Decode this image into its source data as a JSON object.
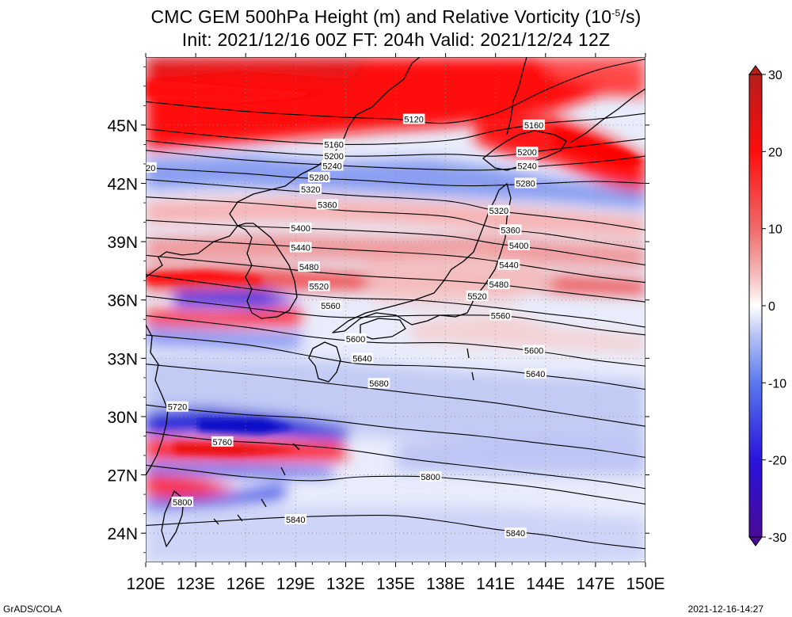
{
  "title": {
    "line1_prefix": "CMC GEM 500hPa Height (m) and Relative Vorticity (10",
    "line1_sup": "-5",
    "line1_suffix": "/s)",
    "line2": "Init: 2021/12/16 00Z  FT: 204h  Valid: 2021/12/24 12Z"
  },
  "map": {
    "lon_range": [
      120,
      150
    ],
    "lat_range": [
      22.5,
      48.5
    ],
    "lon_ticks": [
      120,
      123,
      126,
      129,
      132,
      135,
      138,
      141,
      144,
      147,
      150
    ],
    "lat_ticks": [
      24,
      27,
      30,
      33,
      36,
      39,
      42,
      45
    ],
    "lon_labels": [
      "120E",
      "123E",
      "126E",
      "129E",
      "132E",
      "135E",
      "138E",
      "141E",
      "144E",
      "147E",
      "150E"
    ],
    "lat_labels": [
      "24N",
      "27N",
      "30N",
      "33N",
      "36N",
      "39N",
      "42N",
      "45N"
    ]
  },
  "contours": [
    {
      "value": 5120,
      "label": "5120",
      "pts": [
        [
          120,
          46.2
        ],
        [
          126,
          45.7
        ],
        [
          132,
          45.4
        ],
        [
          135,
          45.3
        ],
        [
          138,
          45.1
        ],
        [
          141,
          45.6
        ],
        [
          144,
          46.8
        ],
        [
          147,
          47.8
        ],
        [
          150,
          48.4
        ]
      ]
    },
    {
      "value": 5160,
      "label": "5160",
      "pts": [
        [
          120,
          44.8
        ],
        [
          126,
          44.3
        ],
        [
          132,
          44.0
        ],
        [
          138,
          44.2
        ],
        [
          141,
          44.7
        ],
        [
          144,
          45.1
        ],
        [
          147,
          45.3
        ],
        [
          150,
          45.6
        ]
      ]
    },
    {
      "value": 5200,
      "label": "5200",
      "pts": [
        [
          120,
          44.2
        ],
        [
          126,
          43.7
        ],
        [
          132,
          43.4
        ],
        [
          138,
          43.5
        ],
        [
          141,
          43.4
        ],
        [
          144,
          43.7
        ],
        [
          147,
          44.0
        ],
        [
          150,
          44.3
        ]
      ]
    },
    {
      "value": 5240,
      "label": "5240",
      "pts": [
        [
          120,
          43.7
        ],
        [
          126,
          43.2
        ],
        [
          132,
          42.9
        ],
        [
          138,
          42.7
        ],
        [
          141,
          42.7
        ],
        [
          144,
          42.9
        ],
        [
          147,
          43.1
        ],
        [
          150,
          43.4
        ]
      ]
    },
    {
      "value": 5280,
      "label": "5280",
      "pts": [
        [
          120,
          42.8
        ],
        [
          126,
          42.5
        ],
        [
          129,
          42.3
        ],
        [
          132,
          42.2
        ],
        [
          138,
          41.9
        ],
        [
          141,
          41.9
        ],
        [
          144,
          42.0
        ],
        [
          147,
          42.1
        ],
        [
          150,
          42.0
        ]
      ]
    },
    {
      "value": 5320,
      "label": "5320",
      "pts": [
        [
          120,
          42.2
        ],
        [
          126,
          41.8
        ],
        [
          132,
          41.4
        ],
        [
          138,
          41.1
        ],
        [
          141,
          40.6
        ],
        [
          144,
          40.3
        ],
        [
          147,
          40.0
        ],
        [
          150,
          39.6
        ]
      ]
    },
    {
      "value": 5360,
      "label": "5360",
      "pts": [
        [
          120,
          41.3
        ],
        [
          126,
          41.0
        ],
        [
          132,
          40.6
        ],
        [
          138,
          40.3
        ],
        [
          141,
          39.7
        ],
        [
          144,
          39.4
        ],
        [
          147,
          39.0
        ],
        [
          150,
          38.6
        ]
      ]
    },
    {
      "value": 5400,
      "label": "5400",
      "pts": [
        [
          120,
          40.1
        ],
        [
          126,
          39.8
        ],
        [
          132,
          39.6
        ],
        [
          138,
          39.3
        ],
        [
          141,
          38.9
        ],
        [
          144,
          38.6
        ],
        [
          147,
          38.2
        ],
        [
          150,
          37.8
        ]
      ]
    },
    {
      "value": 5440,
      "label": "5440",
      "pts": [
        [
          120,
          39.2
        ],
        [
          126,
          38.9
        ],
        [
          132,
          38.6
        ],
        [
          138,
          38.3
        ],
        [
          141,
          38.0
        ],
        [
          144,
          37.6
        ],
        [
          147,
          37.2
        ],
        [
          150,
          36.9
        ]
      ]
    },
    {
      "value": 5480,
      "label": "5480",
      "pts": [
        [
          120,
          38.3
        ],
        [
          126,
          37.8
        ],
        [
          132,
          37.3
        ],
        [
          138,
          37.0
        ],
        [
          141,
          36.8
        ],
        [
          144,
          36.5
        ],
        [
          147,
          36.2
        ],
        [
          150,
          35.9
        ]
      ]
    },
    {
      "value": 5520,
      "label": "5520",
      "pts": [
        [
          120,
          37.3
        ],
        [
          126,
          36.6
        ],
        [
          129,
          36.3
        ],
        [
          132,
          36.1
        ],
        [
          136,
          36.0
        ],
        [
          140,
          35.7
        ],
        [
          144,
          35.3
        ],
        [
          147,
          35.0
        ],
        [
          150,
          34.6
        ]
      ]
    },
    {
      "value": 5560,
      "label": "5560",
      "pts": [
        [
          120,
          36.2
        ],
        [
          126,
          35.6
        ],
        [
          129,
          35.3
        ],
        [
          132,
          35.1
        ],
        [
          136,
          35.2
        ],
        [
          141,
          35.2
        ],
        [
          144,
          34.9
        ],
        [
          147,
          34.5
        ],
        [
          150,
          34.2
        ]
      ]
    },
    {
      "value": 5600,
      "label": "5600",
      "pts": [
        [
          120,
          35.2
        ],
        [
          126,
          34.6
        ],
        [
          130,
          34.1
        ],
        [
          134,
          33.8
        ],
        [
          138,
          33.8
        ],
        [
          141,
          33.6
        ],
        [
          144,
          33.3
        ],
        [
          147,
          32.9
        ],
        [
          150,
          32.6
        ]
      ]
    },
    {
      "value": 5640,
      "label": "5640",
      "pts": [
        [
          120,
          34.2
        ],
        [
          126,
          33.7
        ],
        [
          130,
          33.1
        ],
        [
          133,
          32.7
        ],
        [
          137,
          32.6
        ],
        [
          141,
          32.4
        ],
        [
          144,
          32.1
        ],
        [
          147,
          31.8
        ],
        [
          150,
          31.4
        ]
      ]
    },
    {
      "value": 5680,
      "label": "5680",
      "pts": [
        [
          120,
          32.7
        ],
        [
          126,
          32.2
        ],
        [
          130,
          31.8
        ],
        [
          133,
          31.5
        ],
        [
          137,
          31.1
        ],
        [
          141,
          30.7
        ],
        [
          144,
          30.3
        ],
        [
          147,
          29.9
        ],
        [
          150,
          29.5
        ]
      ]
    },
    {
      "value": 5720,
      "label": "5720",
      "pts": [
        [
          120,
          30.6
        ],
        [
          122,
          30.4
        ],
        [
          126,
          30.1
        ],
        [
          130,
          29.9
        ],
        [
          135,
          29.4
        ],
        [
          140,
          29.0
        ],
        [
          144,
          28.6
        ],
        [
          147,
          28.3
        ],
        [
          150,
          27.9
        ]
      ]
    },
    {
      "value": 5760,
      "label": "5760",
      "pts": [
        [
          120,
          29.2
        ],
        [
          124,
          28.8
        ],
        [
          128,
          28.6
        ],
        [
          132,
          28.3
        ],
        [
          136,
          27.8
        ],
        [
          140,
          27.4
        ],
        [
          144,
          27.0
        ],
        [
          147,
          26.7
        ],
        [
          150,
          26.3
        ]
      ]
    },
    {
      "value": 5800,
      "label": "5800",
      "pts": [
        [
          120,
          27.5
        ],
        [
          123,
          27.2
        ],
        [
          126,
          26.9
        ],
        [
          130,
          26.7
        ],
        [
          133,
          26.9
        ],
        [
          137,
          26.9
        ],
        [
          141,
          26.6
        ],
        [
          144,
          26.3
        ],
        [
          147,
          25.9
        ],
        [
          150,
          25.5
        ]
      ]
    },
    {
      "value": 5840,
      "label": "5840",
      "pts": [
        [
          120,
          24.4
        ],
        [
          124,
          24.6
        ],
        [
          128,
          24.8
        ],
        [
          132,
          24.9
        ],
        [
          135,
          24.9
        ],
        [
          138,
          24.6
        ],
        [
          141,
          24.2
        ],
        [
          144,
          23.9
        ],
        [
          147,
          23.5
        ],
        [
          150,
          23.2
        ]
      ]
    }
  ],
  "contour_labels": [
    {
      "text": "5120",
      "lon": 136.1,
      "lat": 45.3
    },
    {
      "text": "5160",
      "lon": 131.3,
      "lat": 44.0
    },
    {
      "text": "5160",
      "lon": 143.3,
      "lat": 45.0
    },
    {
      "text": "5200",
      "lon": 131.3,
      "lat": 43.4
    },
    {
      "text": "5200",
      "lon": 142.9,
      "lat": 43.6
    },
    {
      "text": "5240",
      "lon": 131.2,
      "lat": 42.9
    },
    {
      "text": "5240",
      "lon": 142.9,
      "lat": 42.9
    },
    {
      "text": "5280",
      "lon": 130.4,
      "lat": 42.3
    },
    {
      "text": "5280",
      "lon": 142.8,
      "lat": 42.0
    },
    {
      "text": "5320",
      "lon": 129.9,
      "lat": 41.7
    },
    {
      "text": "5320",
      "lon": 141.2,
      "lat": 40.6
    },
    {
      "text": "5360",
      "lon": 130.9,
      "lat": 40.9
    },
    {
      "text": "5360",
      "lon": 141.9,
      "lat": 39.6
    },
    {
      "text": "5400",
      "lon": 129.3,
      "lat": 39.7
    },
    {
      "text": "5400",
      "lon": 142.4,
      "lat": 38.8
    },
    {
      "text": "5440",
      "lon": 129.3,
      "lat": 38.7
    },
    {
      "text": "5440",
      "lon": 141.8,
      "lat": 37.8
    },
    {
      "text": "5480",
      "lon": 129.8,
      "lat": 37.7
    },
    {
      "text": "5480",
      "lon": 141.2,
      "lat": 36.8
    },
    {
      "text": "5520",
      "lon": 130.4,
      "lat": 36.7
    },
    {
      "text": "5520",
      "lon": 139.9,
      "lat": 36.2
    },
    {
      "text": "5560",
      "lon": 131.1,
      "lat": 35.7
    },
    {
      "text": "5560",
      "lon": 141.3,
      "lat": 35.2
    },
    {
      "text": "5600",
      "lon": 132.6,
      "lat": 34.0
    },
    {
      "text": "5600",
      "lon": 143.3,
      "lat": 33.4
    },
    {
      "text": "5640",
      "lon": 133.0,
      "lat": 33.0
    },
    {
      "text": "5640",
      "lon": 143.4,
      "lat": 32.2
    },
    {
      "text": "5680",
      "lon": 134.0,
      "lat": 31.7
    },
    {
      "text": "5720",
      "lon": 121.9,
      "lat": 30.5
    },
    {
      "text": "5760",
      "lon": 124.6,
      "lat": 28.7
    },
    {
      "text": "5800",
      "lon": 137.1,
      "lat": 26.9
    },
    {
      "text": "5800",
      "lon": 122.2,
      "lat": 25.6
    },
    {
      "text": "5840",
      "lon": 129.0,
      "lat": 24.7
    },
    {
      "text": "5840",
      "lon": 142.2,
      "lat": 24.0
    },
    {
      "text": "20",
      "lon": 120.3,
      "lat": 42.8
    }
  ],
  "colorbar": {
    "vmin": -30,
    "vmax": 30,
    "ticks": [
      30,
      20,
      10,
      0,
      -10,
      -20,
      -30
    ],
    "tick_labels": [
      "30",
      "20",
      "10",
      "0",
      "-10",
      "-20",
      "-30"
    ],
    "stops": [
      {
        "value": -30,
        "color": "#4a0a99"
      },
      {
        "value": -20,
        "color": "#2814dc"
      },
      {
        "value": -10,
        "color": "#5a78ee"
      },
      {
        "value": -4,
        "color": "#b4c1f5"
      },
      {
        "value": 0,
        "color": "#ffffff"
      },
      {
        "value": 4,
        "color": "#f5bcbc"
      },
      {
        "value": 10,
        "color": "#ef6a6a"
      },
      {
        "value": 20,
        "color": "#ff0d0d"
      },
      {
        "value": 30,
        "color": "#b51d1d"
      }
    ]
  },
  "footer": {
    "left": "GrADS/COLA",
    "right": "2021-12-16-14:27"
  }
}
